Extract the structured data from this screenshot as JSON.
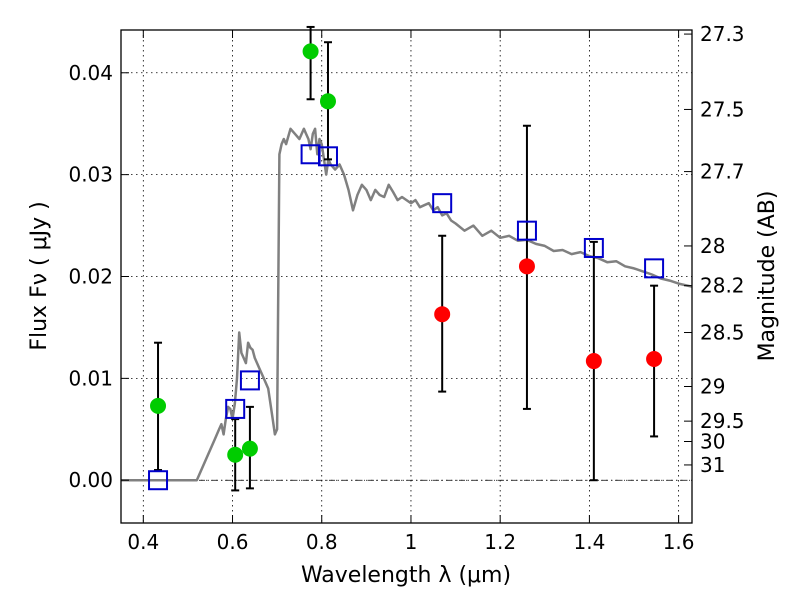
{
  "chart_data": {
    "type": "scatter",
    "title": "",
    "xlabel": "Wavelength  λ (μm)",
    "ylabel": "Flux  Fν  ( μJy )",
    "ylabel_right": "Magnitude (AB)",
    "xlim": [
      0.35,
      1.63
    ],
    "ylim": [
      -0.0042,
      0.0442
    ],
    "grid": true,
    "xticks": [
      0.4,
      0.6,
      0.8,
      1.0,
      1.2,
      1.4,
      1.6
    ],
    "xtick_labels": [
      "0.4",
      "0.6",
      "0.8",
      "1",
      "1.2",
      "1.4",
      "1.6"
    ],
    "yticks": [
      0.0,
      0.01,
      0.02,
      0.03,
      0.04
    ],
    "ytick_labels": [
      "0.00",
      "0.01",
      "0.02",
      "0.03",
      "0.04"
    ],
    "right_ticks": [
      {
        "label": "27.3",
        "flux": 0.0438
      },
      {
        "label": "27.5",
        "flux": 0.0364
      },
      {
        "label": "27.7",
        "flux": 0.0303
      },
      {
        "label": "28",
        "flux": 0.023
      },
      {
        "label": "28.2",
        "flux": 0.0191
      },
      {
        "label": "28.5",
        "flux": 0.0145
      },
      {
        "label": "29",
        "flux": 0.0092
      },
      {
        "label": "29.5",
        "flux": 0.0058
      },
      {
        "label": "30",
        "flux": 0.0038
      },
      {
        "label": "31",
        "flux": 0.0015
      }
    ],
    "series": [
      {
        "kind": "line",
        "color": "#808080",
        "x": [
          0.35,
          0.52,
          0.53,
          0.54,
          0.55,
          0.56,
          0.57,
          0.575,
          0.58,
          0.585,
          0.59,
          0.595,
          0.6,
          0.605,
          0.61,
          0.615,
          0.62,
          0.625,
          0.63,
          0.635,
          0.64,
          0.645,
          0.65,
          0.66,
          0.67,
          0.68,
          0.69,
          0.695,
          0.7,
          0.705,
          0.71,
          0.715,
          0.72,
          0.73,
          0.74,
          0.75,
          0.76,
          0.765,
          0.77,
          0.775,
          0.78,
          0.785,
          0.79,
          0.795,
          0.8,
          0.805,
          0.81,
          0.815,
          0.82,
          0.83,
          0.84,
          0.85,
          0.86,
          0.87,
          0.88,
          0.89,
          0.9,
          0.91,
          0.92,
          0.93,
          0.94,
          0.95,
          0.96,
          0.97,
          0.98,
          0.99,
          1.0,
          1.01,
          1.02,
          1.03,
          1.04,
          1.05,
          1.06,
          1.07,
          1.08,
          1.09,
          1.1,
          1.12,
          1.14,
          1.16,
          1.18,
          1.2,
          1.22,
          1.24,
          1.26,
          1.28,
          1.3,
          1.32,
          1.34,
          1.36,
          1.38,
          1.4,
          1.42,
          1.44,
          1.46,
          1.48,
          1.5,
          1.52,
          1.54,
          1.56,
          1.58,
          1.6,
          1.63
        ],
        "y": [
          0.0,
          0.0,
          0.001,
          0.002,
          0.003,
          0.004,
          0.005,
          0.0055,
          0.0045,
          0.006,
          0.0072,
          0.007,
          0.006,
          0.0075,
          0.01,
          0.0145,
          0.0125,
          0.012,
          0.0115,
          0.0135,
          0.013,
          0.0128,
          0.012,
          0.011,
          0.01,
          0.009,
          0.006,
          0.0045,
          0.005,
          0.032,
          0.033,
          0.0335,
          0.033,
          0.0345,
          0.034,
          0.0335,
          0.0345,
          0.034,
          0.0335,
          0.0325,
          0.034,
          0.0345,
          0.032,
          0.0335,
          0.033,
          0.0315,
          0.03,
          0.0315,
          0.031,
          0.0305,
          0.031,
          0.03,
          0.0285,
          0.0265,
          0.028,
          0.029,
          0.0285,
          0.0275,
          0.0285,
          0.028,
          0.0278,
          0.029,
          0.0283,
          0.0275,
          0.0278,
          0.0275,
          0.0272,
          0.0275,
          0.0268,
          0.027,
          0.0272,
          0.0265,
          0.0268,
          0.026,
          0.0262,
          0.0255,
          0.0252,
          0.0245,
          0.025,
          0.024,
          0.0245,
          0.0238,
          0.024,
          0.0235,
          0.0236,
          0.0232,
          0.023,
          0.0225,
          0.0226,
          0.0222,
          0.0224,
          0.022,
          0.0218,
          0.0214,
          0.0215,
          0.021,
          0.0208,
          0.0205,
          0.0202,
          0.0198,
          0.0196,
          0.0193,
          0.019
        ]
      },
      {
        "kind": "points_with_errors",
        "color": "#00cc00",
        "marker": "circle",
        "x": [
          0.433,
          0.606,
          0.639,
          0.775,
          0.814
        ],
        "y": [
          0.0073,
          0.0025,
          0.0031,
          0.0421,
          0.0372
        ],
        "y_lo": [
          0.001,
          -0.001,
          -0.0008,
          0.0374,
          0.0315
        ],
        "y_hi": [
          0.0135,
          0.006,
          0.0072,
          0.0445,
          0.043
        ]
      },
      {
        "kind": "points_with_errors",
        "color": "#ff0000",
        "marker": "circle",
        "x": [
          1.07,
          1.26,
          1.41,
          1.545
        ],
        "y": [
          0.0163,
          0.021,
          0.0117,
          0.0119
        ],
        "y_lo": [
          0.0087,
          0.007,
          0.0,
          0.0043
        ],
        "y_hi": [
          0.024,
          0.0348,
          0.0234,
          0.0191
        ]
      },
      {
        "kind": "points",
        "color": "#0000cc",
        "marker": "open-square",
        "x": [
          0.433,
          0.606,
          0.639,
          0.775,
          0.814,
          1.07,
          1.26,
          1.41,
          1.545
        ],
        "y": [
          0.0,
          0.007,
          0.0098,
          0.032,
          0.0318,
          0.0272,
          0.0245,
          0.0228,
          0.0208
        ]
      }
    ]
  }
}
